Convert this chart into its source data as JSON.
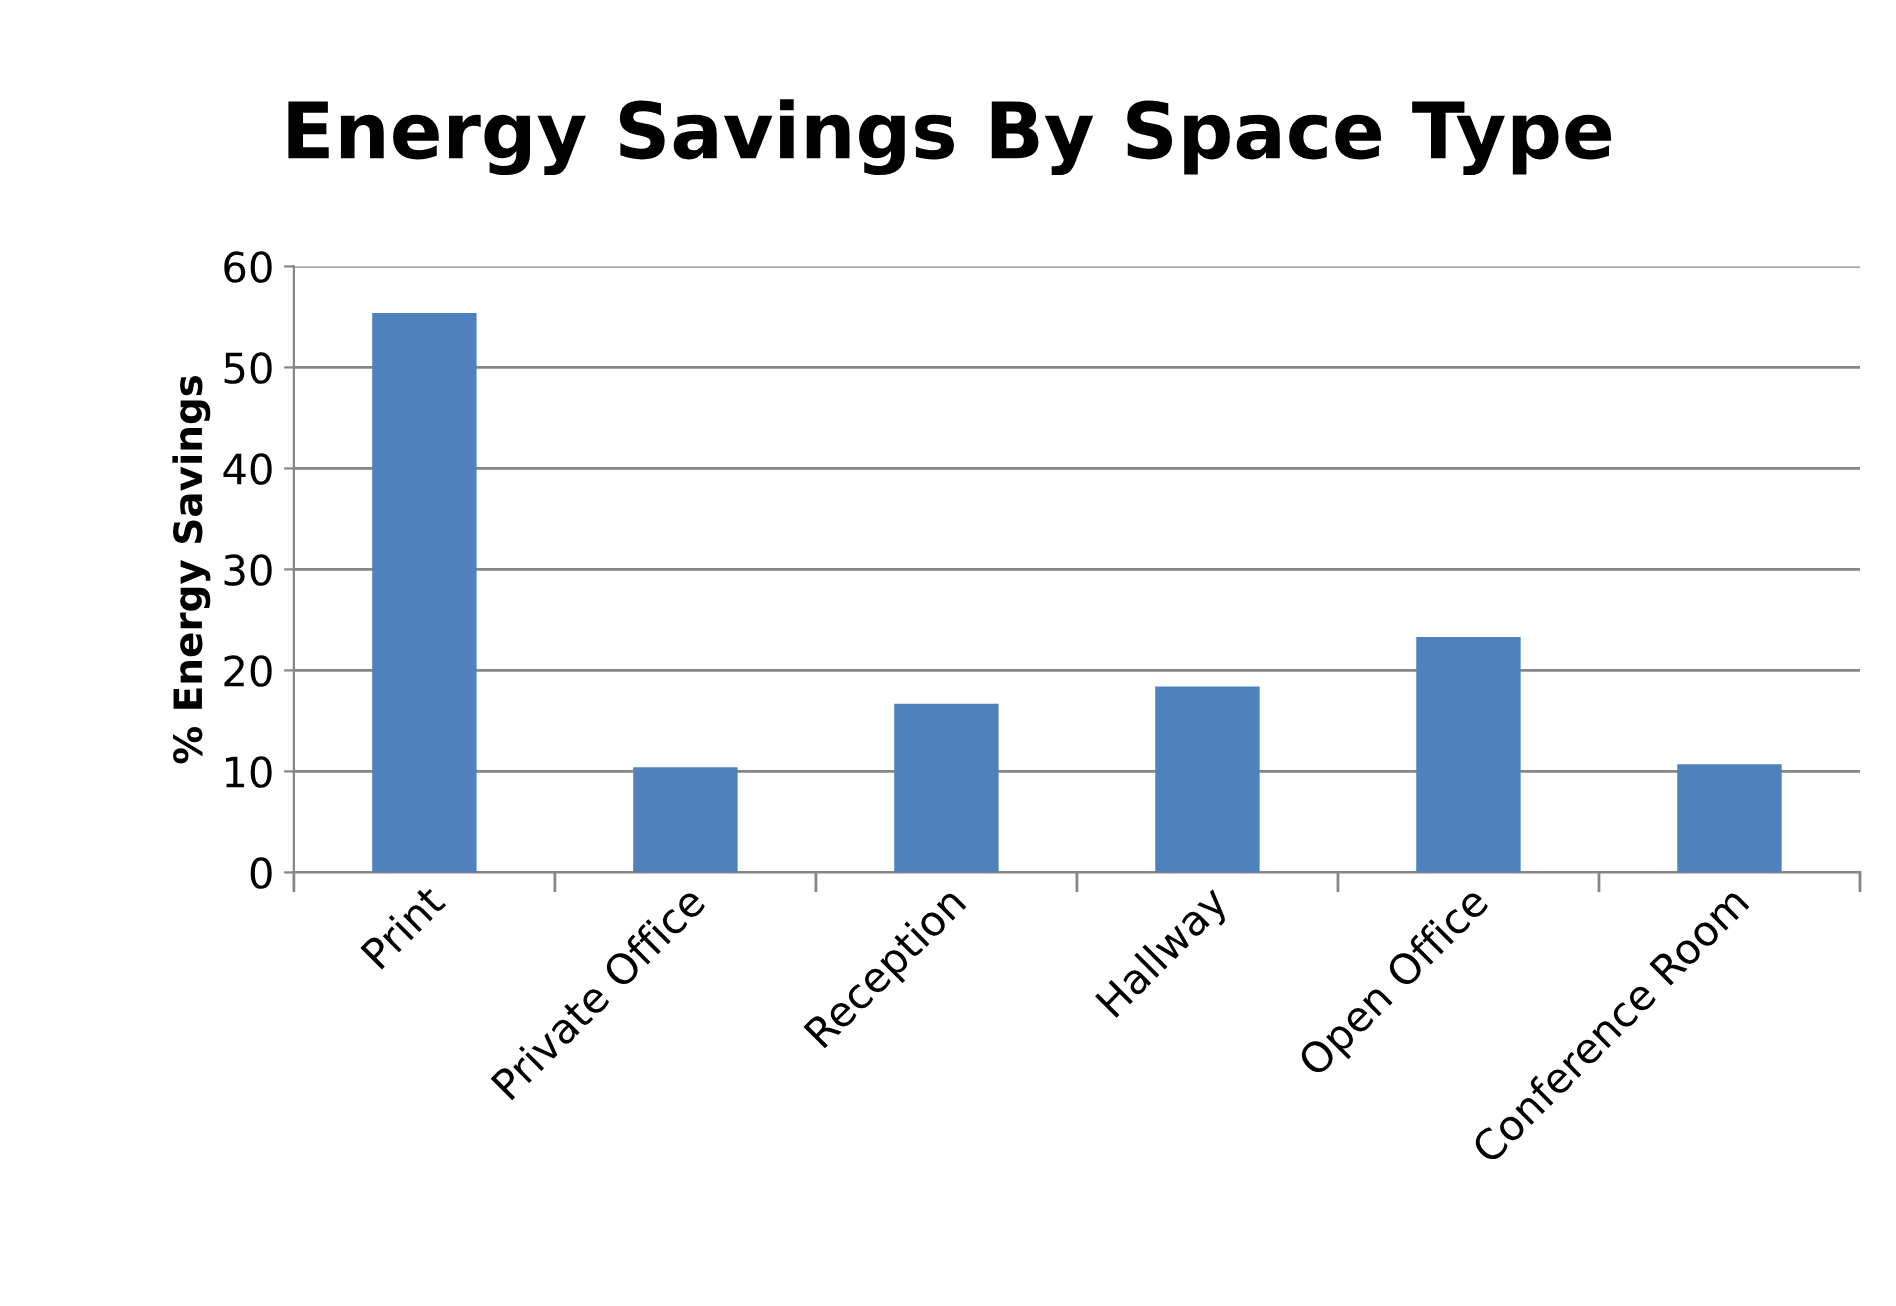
{
  "chart_data": {
    "type": "bar",
    "title": "Energy Savings By Space Type",
    "ylabel": "% Energy Savings",
    "categories": [
      "Print",
      "Private Office",
      "Reception",
      "Hallway",
      "Open Office",
      "Conference Room"
    ],
    "values": [
      55.4,
      10.4,
      16.7,
      18.4,
      23.3,
      10.7
    ],
    "color": "#4f81bd",
    "ylim": [
      0,
      60
    ],
    "yticks": [
      0,
      10,
      20,
      30,
      40,
      50,
      60
    ],
    "grid": "y",
    "legend": false
  }
}
